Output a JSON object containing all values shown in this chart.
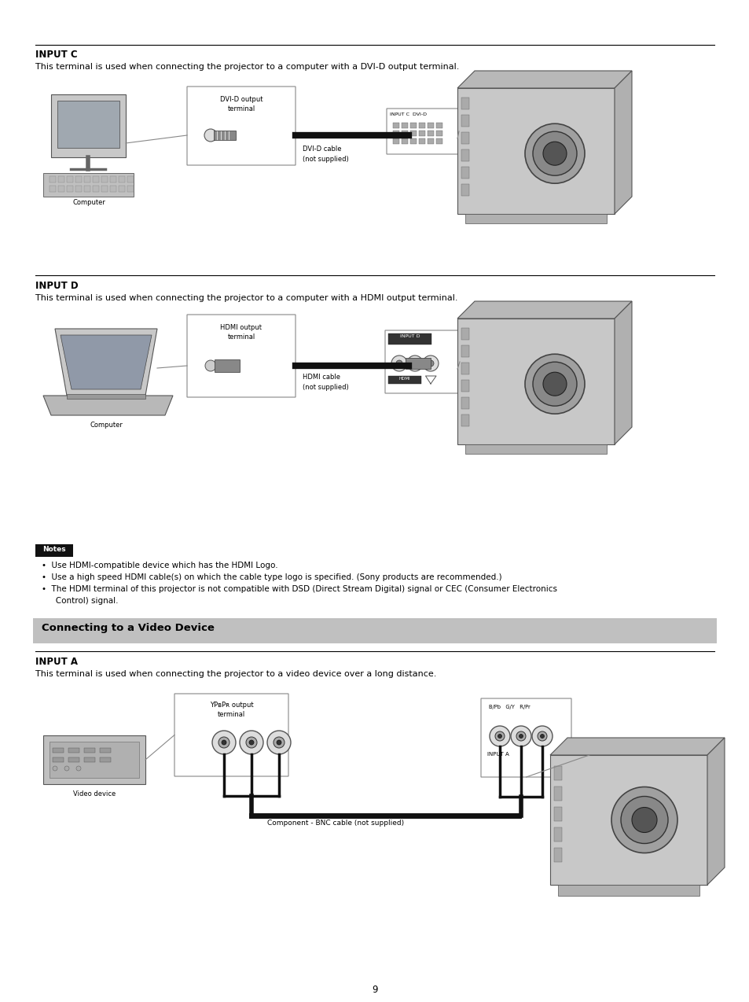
{
  "bg_color": "#ffffff",
  "page_width": 9.54,
  "page_height": 12.74,
  "lm": 0.047,
  "rm": 0.953,
  "title_fontsize": 8.5,
  "desc_fontsize": 8.0,
  "note_fontsize": 7.5,
  "banner_fontsize": 9.5,
  "small_fontsize": 6.0,
  "tiny_fontsize": 5.0,
  "page_number": "9",
  "banner_text": "Connecting to a Video Device",
  "banner_bg": "#c0c0c0",
  "notes": [
    "Use HDMI-compatible device which has the HDMI Logo.",
    "Use a high speed HDMI cable(s) on which the cable type logo is specified. (Sony products are recommended.)",
    "The HDMI terminal of this projector is not compatible with DSD (Direct Stream Digital) signal or CEC (Consumer Electronics\n   Control) signal."
  ]
}
